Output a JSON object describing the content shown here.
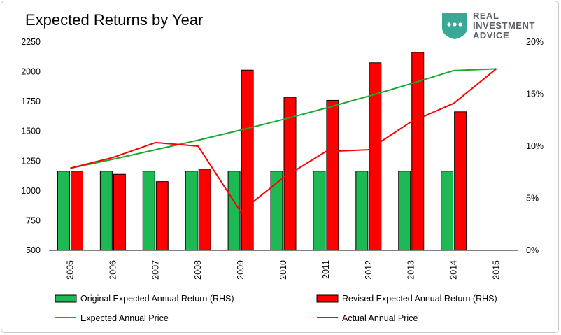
{
  "header": {
    "title": "Expected Returns by Year",
    "logo": {
      "line1": "REAL",
      "line2": "INVESTMENT",
      "line3": "ADVICE",
      "icon": "chat-bubble-shield-icon",
      "color": "#3aa896"
    }
  },
  "chart_data": {
    "type": "bar",
    "categories": [
      "2005",
      "2006",
      "2007",
      "2008",
      "2009",
      "2010",
      "2011",
      "2012",
      "2013",
      "2014",
      "2015"
    ],
    "left_axis": {
      "ticks": [
        500,
        750,
        1000,
        1250,
        1500,
        1750,
        2000,
        2250
      ],
      "ylim": [
        500,
        2250
      ]
    },
    "right_axis": {
      "ticks": [
        "0%",
        "5%",
        "10%",
        "15%",
        "20%"
      ],
      "ylim": [
        0,
        20
      ]
    },
    "series": [
      {
        "name": "Original Expected Annual Return (RHS)",
        "kind": "bar",
        "axis": "right",
        "color": "#1db954",
        "values": [
          7.6,
          7.6,
          7.6,
          7.6,
          7.6,
          7.6,
          7.6,
          7.6,
          7.6,
          7.6,
          null
        ]
      },
      {
        "name": "Revised Expected Annual Return (RHS)",
        "kind": "bar",
        "axis": "right",
        "color": "#ff0000",
        "values": [
          7.6,
          7.3,
          6.6,
          7.8,
          17.3,
          14.7,
          14.4,
          18.0,
          19.0,
          13.3,
          null
        ]
      },
      {
        "name": "Expected Annual Price",
        "kind": "line",
        "axis": "left",
        "color": "#1aa830",
        "values": [
          1190,
          1265,
          1345,
          1425,
          1510,
          1600,
          1695,
          1795,
          1900,
          2010,
          2025
        ]
      },
      {
        "name": "Actual Annual Price",
        "kind": "line",
        "axis": "left",
        "color": "#ff0000",
        "values": [
          1190,
          1280,
          1405,
          1375,
          825,
          1110,
          1330,
          1345,
          1580,
          1735,
          2025
        ]
      }
    ]
  }
}
